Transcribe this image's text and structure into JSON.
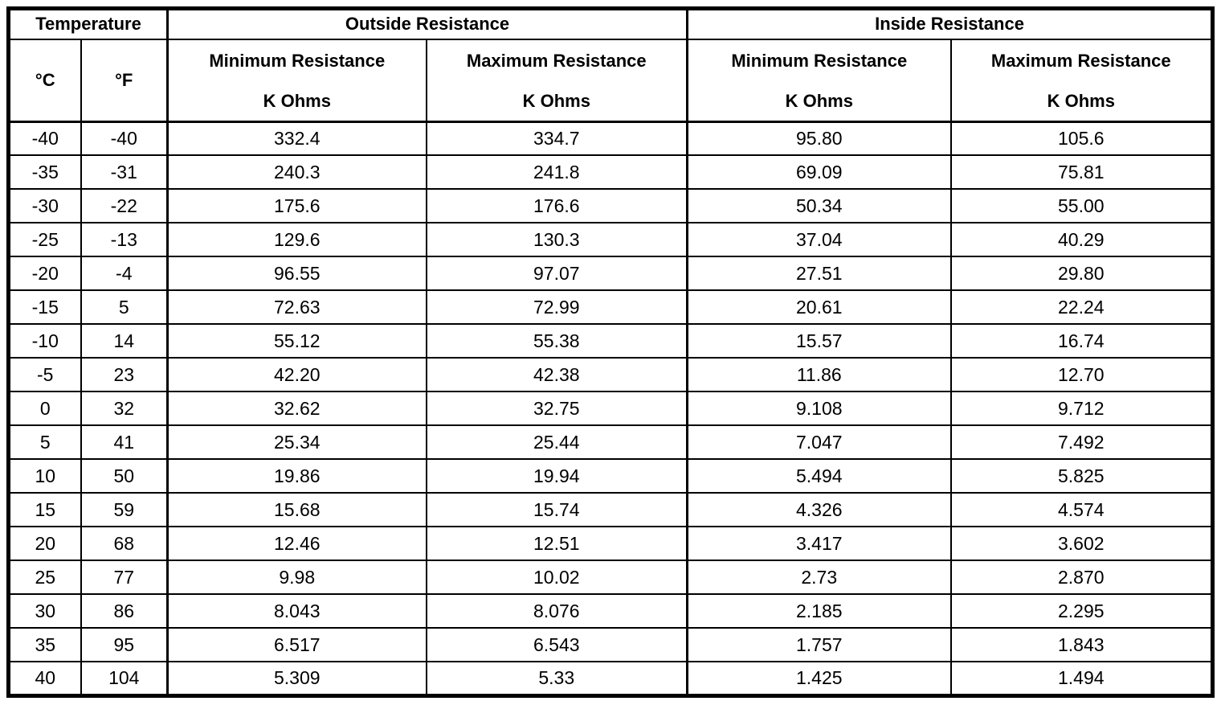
{
  "page": {
    "background_color": "#ffffff",
    "text_color": "#000000",
    "border_color": "#000000"
  },
  "table": {
    "group_headers": [
      {
        "label": "Temperature",
        "colspan": 2
      },
      {
        "label": "Outside Resistance",
        "colspan": 2
      },
      {
        "label": "Inside Resistance",
        "colspan": 2
      }
    ],
    "columns": [
      {
        "key": "temp-c",
        "label": "°C"
      },
      {
        "key": "temp-f",
        "label": "°F"
      },
      {
        "key": "outside-min",
        "label": "Minimum Resistance",
        "unit": "K Ohms"
      },
      {
        "key": "outside-max",
        "label": "Maximum Resistance",
        "unit": "K Ohms"
      },
      {
        "key": "inside-min",
        "label": "Minimum Resistance",
        "unit": "K Ohms"
      },
      {
        "key": "inside-max",
        "label": "Maximum Resistance",
        "unit": "K Ohms"
      }
    ],
    "rows": [
      [
        "-40",
        "-40",
        "332.4",
        "334.7",
        "95.80",
        "105.6"
      ],
      [
        "-35",
        "-31",
        "240.3",
        "241.8",
        "69.09",
        "75.81"
      ],
      [
        "-30",
        "-22",
        "175.6",
        "176.6",
        "50.34",
        "55.00"
      ],
      [
        "-25",
        "-13",
        "129.6",
        "130.3",
        "37.04",
        "40.29"
      ],
      [
        "-20",
        "-4",
        "96.55",
        "97.07",
        "27.51",
        "29.80"
      ],
      [
        "-15",
        "5",
        "72.63",
        "72.99",
        "20.61",
        "22.24"
      ],
      [
        "-10",
        "14",
        "55.12",
        "55.38",
        "15.57",
        "16.74"
      ],
      [
        "-5",
        "23",
        "42.20",
        "42.38",
        "11.86",
        "12.70"
      ],
      [
        "0",
        "32",
        "32.62",
        "32.75",
        "9.108",
        "9.712"
      ],
      [
        "5",
        "41",
        "25.34",
        "25.44",
        "7.047",
        "7.492"
      ],
      [
        "10",
        "50",
        "19.86",
        "19.94",
        "5.494",
        "5.825"
      ],
      [
        "15",
        "59",
        "15.68",
        "15.74",
        "4.326",
        "4.574"
      ],
      [
        "20",
        "68",
        "12.46",
        "12.51",
        "3.417",
        "3.602"
      ],
      [
        "25",
        "77",
        "9.98",
        "10.02",
        "2.73",
        "2.870"
      ],
      [
        "30",
        "86",
        "8.043",
        "8.076",
        "2.185",
        "2.295"
      ],
      [
        "35",
        "95",
        "6.517",
        "6.543",
        "1.757",
        "1.843"
      ],
      [
        "40",
        "104",
        "5.309",
        "5.33",
        "1.425",
        "1.494"
      ]
    ]
  }
}
